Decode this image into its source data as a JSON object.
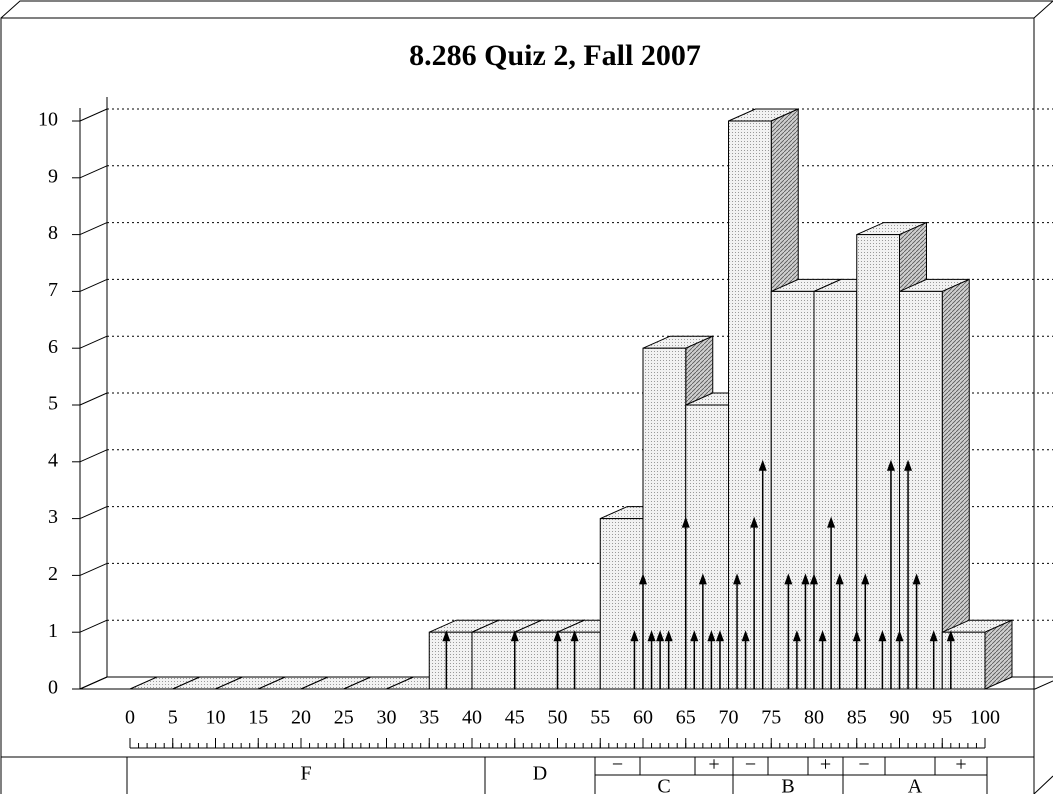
{
  "chart_data": {
    "type": "histogram",
    "title": "8.286 Quiz 2, Fall 2007",
    "bins": [
      0,
      5,
      10,
      15,
      20,
      25,
      30,
      35,
      40,
      45,
      50,
      55,
      60,
      65,
      70,
      75,
      80,
      85,
      90,
      95,
      100
    ],
    "counts": [
      0,
      0,
      0,
      0,
      0,
      0,
      0,
      1,
      1,
      1,
      1,
      3,
      6,
      5,
      10,
      7,
      7,
      8,
      7,
      1
    ],
    "scores": {
      "x": [
        37,
        45,
        50,
        52,
        59,
        60,
        61,
        62,
        63,
        65,
        66,
        67,
        68,
        69,
        71,
        72,
        73,
        74,
        77,
        78,
        79,
        80,
        81,
        82,
        83,
        85,
        86,
        88,
        89,
        90,
        91,
        92,
        94,
        96
      ],
      "values": [
        1,
        1,
        1,
        1,
        1,
        2,
        1,
        1,
        1,
        3,
        1,
        2,
        1,
        1,
        2,
        1,
        3,
        4,
        2,
        1,
        2,
        2,
        1,
        3,
        2,
        1,
        2,
        1,
        4,
        1,
        4,
        2,
        1,
        1
      ]
    },
    "xlim": [
      0,
      100
    ],
    "xticks": [
      0,
      5,
      10,
      15,
      20,
      25,
      30,
      35,
      40,
      45,
      50,
      55,
      60,
      65,
      70,
      75,
      80,
      85,
      90,
      95,
      100
    ],
    "ylim": [
      0,
      10
    ],
    "yticks": [
      0,
      1,
      2,
      3,
      4,
      5,
      6,
      7,
      8,
      9,
      10
    ],
    "grid": true,
    "grades": [
      "F",
      "D",
      "C",
      "B",
      "A"
    ],
    "minus": "−",
    "plus": "+",
    "color": "#e6e6e6",
    "side_color": "#b8b8b8"
  }
}
